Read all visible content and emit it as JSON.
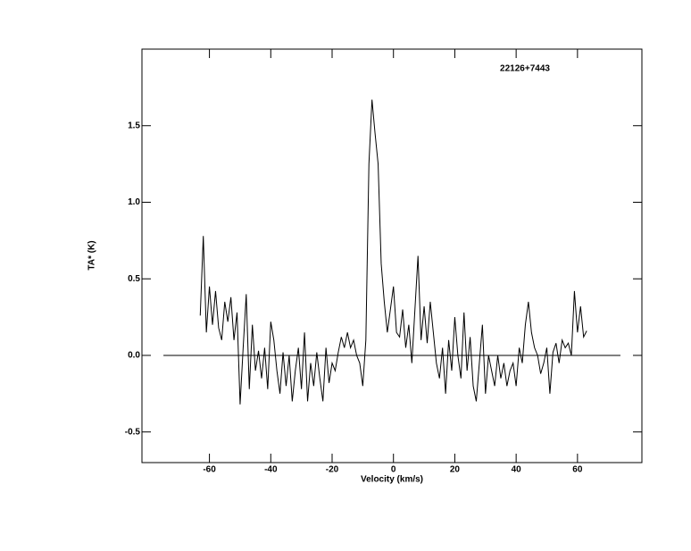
{
  "chart_data": {
    "type": "line",
    "step": true,
    "title": "22126+7443",
    "x_label": "Velocity (km/s)",
    "y_label": "TA* (K)",
    "x": [
      -63,
      -62,
      -61,
      -60,
      -59,
      -58,
      -57,
      -56,
      -55,
      -54,
      -53,
      -52,
      -51,
      -50,
      -49,
      -48,
      -47,
      -46,
      -45,
      -44,
      -43,
      -42,
      -41,
      -40,
      -39,
      -38,
      -37,
      -36,
      -35,
      -34,
      -33,
      -32,
      -31,
      -30,
      -29,
      -28,
      -27,
      -26,
      -25,
      -24,
      -23,
      -22,
      -21,
      -20,
      -19,
      -18,
      -17,
      -16,
      -15,
      -14,
      -13,
      -12,
      -11,
      -10,
      -9,
      -8,
      -7,
      -6,
      -5,
      -4,
      -3,
      -2,
      -1,
      0,
      1,
      2,
      3,
      4,
      5,
      6,
      7,
      8,
      9,
      10,
      11,
      12,
      13,
      14,
      15,
      16,
      17,
      18,
      19,
      20,
      21,
      22,
      23,
      24,
      25,
      26,
      27,
      28,
      29,
      30,
      31,
      32,
      33,
      34,
      35,
      36,
      37,
      38,
      39,
      40,
      41,
      42,
      43,
      44,
      45,
      46,
      47,
      48,
      49,
      50,
      51,
      52,
      53,
      54,
      55,
      56,
      57,
      58,
      59,
      60,
      61,
      62,
      63
    ],
    "values": [
      0.26,
      0.78,
      0.15,
      0.45,
      0.2,
      0.42,
      0.18,
      0.1,
      0.35,
      0.22,
      0.38,
      0.1,
      0.28,
      -0.32,
      0.05,
      0.4,
      -0.22,
      0.2,
      -0.1,
      0.03,
      -0.15,
      0.05,
      -0.22,
      0.22,
      0.1,
      -0.1,
      -0.25,
      0.02,
      -0.2,
      0.0,
      -0.3,
      -0.1,
      0.05,
      -0.22,
      0.15,
      -0.3,
      -0.05,
      -0.2,
      0.02,
      -0.15,
      -0.3,
      0.05,
      -0.18,
      -0.05,
      -0.1,
      0.02,
      0.12,
      0.05,
      0.15,
      0.05,
      0.1,
      0.0,
      -0.05,
      -0.2,
      0.1,
      1.25,
      1.67,
      1.45,
      1.25,
      0.6,
      0.35,
      0.15,
      0.3,
      0.45,
      0.15,
      0.12,
      0.3,
      0.05,
      0.2,
      -0.05,
      0.3,
      0.65,
      0.1,
      0.32,
      0.08,
      0.35,
      0.15,
      -0.05,
      -0.15,
      0.05,
      -0.25,
      0.1,
      -0.1,
      0.25,
      0.0,
      -0.15,
      0.28,
      -0.1,
      0.12,
      -0.2,
      -0.3,
      -0.05,
      0.2,
      -0.25,
      0.0,
      -0.1,
      -0.2,
      0.0,
      -0.15,
      -0.05,
      -0.2,
      -0.1,
      -0.05,
      -0.2,
      0.05,
      -0.05,
      0.2,
      0.35,
      0.15,
      0.05,
      0.0,
      -0.12,
      -0.05,
      0.05,
      -0.25,
      0.02,
      0.08,
      -0.05,
      0.1,
      0.05,
      0.08,
      0.0,
      0.42,
      0.15,
      0.32,
      0.12,
      0.16
    ],
    "color": "#000000",
    "baseline": {
      "x": [
        -75,
        74
      ],
      "y": [
        0,
        0
      ]
    },
    "xlim": [
      -82,
      81
    ],
    "ylim": [
      -0.7,
      2.0
    ],
    "xticks": [
      -60,
      -40,
      -20,
      0,
      20,
      40,
      60
    ],
    "yticks": [
      -0.5,
      {
        "value": 0,
        "label": "0.0"
      },
      0.5,
      {
        "value": 1,
        "label": "1.0"
      },
      1.5
    ]
  }
}
